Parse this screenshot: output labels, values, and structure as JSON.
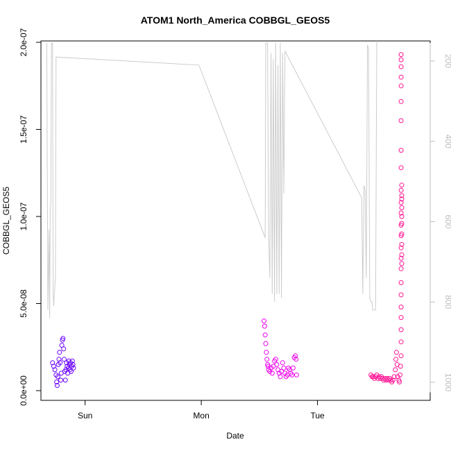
{
  "chart_data": {
    "type": "scatter",
    "title": "ATOM1 North_America COBBGL_GEOS5",
    "xlabel": "Date",
    "ylabel": "COBBGL_GEOS5",
    "y_tick_labels": [
      "0.0e+00",
      "5.0e-08",
      "1.0e-07",
      "1.5e-07",
      "2.0e-07"
    ],
    "y_ticks": [
      0,
      5e-08,
      1e-07,
      1.5e-07,
      2e-07
    ],
    "ylim": [
      0,
      2e-07
    ],
    "x_tick_labels": [
      "Sun",
      "Mon",
      "Tue"
    ],
    "x_ticks": [
      1,
      2,
      3
    ],
    "xlim": [
      0.62,
      3.97
    ],
    "right_axis": {
      "tick_labels": [
        "200",
        "400",
        "600",
        "800",
        "1000"
      ],
      "ticks": [
        200,
        400,
        600,
        800,
        1000
      ],
      "range_top": 155,
      "range_bottom": 1025,
      "color": "#bdbdbd"
    },
    "grid": false,
    "series": [
      {
        "color": "#6a00ff",
        "segments": [
          {
            "x_start": 0.72,
            "x_end": 0.99,
            "points": [
              [
                0.72,
                1.6e-08
              ],
              [
                0.73,
                1.4e-08
              ],
              [
                0.74,
                1.2e-08
              ],
              [
                0.75,
                9e-09
              ],
              [
                0.755,
                5e-09
              ],
              [
                0.76,
                3e-09
              ],
              [
                0.765,
                8e-09
              ],
              [
                0.77,
                1.5e-08
              ],
              [
                0.775,
                1.8e-08
              ],
              [
                0.78,
                2.2e-08
              ],
              [
                0.785,
                1.6e-08
              ],
              [
                0.79,
                6e-09
              ],
              [
                0.795,
                1e-08
              ],
              [
                0.8,
                2.6e-08
              ],
              [
                0.805,
                2.9e-08
              ],
              [
                0.81,
                3e-08
              ],
              [
                0.815,
                2.4e-08
              ],
              [
                0.82,
                1.8e-08
              ],
              [
                0.825,
                1.1e-08
              ],
              [
                0.83,
                6e-09
              ],
              [
                0.835,
                1.2e-08
              ],
              [
                0.84,
                1.6e-08
              ],
              [
                0.845,
                1.4e-08
              ],
              [
                0.85,
                1e-08
              ],
              [
                0.855,
                1.3e-08
              ],
              [
                0.86,
                1.7e-08
              ],
              [
                0.865,
                1.5e-08
              ],
              [
                0.87,
                1.2e-08
              ],
              [
                0.875,
                1.6e-08
              ],
              [
                0.88,
                1.1e-08
              ],
              [
                0.885,
                1.4e-08
              ],
              [
                0.89,
                1.7e-08
              ],
              [
                0.895,
                1.5e-08
              ],
              [
                0.9,
                1.3e-08
              ]
            ]
          }
        ]
      },
      {
        "color": "#ee00ee",
        "segments": [
          {
            "x_start": 2.54,
            "x_end": 2.82,
            "points": [
              [
                2.54,
                4e-08
              ],
              [
                2.545,
                3.7e-08
              ],
              [
                2.55,
                3.2e-08
              ],
              [
                2.555,
                2.7e-08
              ],
              [
                2.56,
                2.2e-08
              ],
              [
                2.565,
                1.8e-08
              ],
              [
                2.57,
                1.5e-08
              ],
              [
                2.575,
                1.4e-08
              ],
              [
                2.58,
                1.2e-08
              ],
              [
                2.59,
                1.1e-08
              ],
              [
                2.6,
                1.3e-08
              ],
              [
                2.61,
                1e-08
              ],
              [
                2.62,
                1.4e-08
              ],
              [
                2.63,
                1.7e-08
              ],
              [
                2.64,
                1.8e-08
              ],
              [
                2.65,
                1.5e-08
              ],
              [
                2.66,
                1.2e-08
              ],
              [
                2.67,
                1e-08
              ],
              [
                2.68,
                8e-09
              ],
              [
                2.69,
                1.1e-08
              ],
              [
                2.7,
                1.6e-08
              ],
              [
                2.71,
                1.3e-08
              ],
              [
                2.72,
                1e-08
              ],
              [
                2.73,
                8e-09
              ],
              [
                2.74,
                9e-09
              ],
              [
                2.75,
                1.3e-08
              ],
              [
                2.76,
                1.2e-08
              ],
              [
                2.77,
                1e-08
              ],
              [
                2.78,
                9e-09
              ],
              [
                2.79,
                1.3e-08
              ],
              [
                2.8,
                1.9e-08
              ],
              [
                2.81,
                2e-08
              ],
              [
                2.815,
                1.8e-08
              ],
              [
                2.82,
                9e-09
              ]
            ]
          }
        ]
      },
      {
        "color": "#ff1493",
        "segments": [
          {
            "x_start": 3.46,
            "x_end": 3.84,
            "points": [
              [
                3.46,
                9e-09
              ],
              [
                3.47,
                8e-09
              ],
              [
                3.48,
                8e-09
              ],
              [
                3.49,
                7e-09
              ],
              [
                3.5,
                8e-09
              ],
              [
                3.51,
                9e-09
              ],
              [
                3.52,
                7e-09
              ],
              [
                3.53,
                8e-09
              ],
              [
                3.54,
                7e-09
              ],
              [
                3.55,
                8e-09
              ],
              [
                3.56,
                7e-09
              ],
              [
                3.57,
                6e-09
              ],
              [
                3.58,
                7e-09
              ],
              [
                3.59,
                6e-09
              ],
              [
                3.6,
                7e-09
              ],
              [
                3.61,
                6e-09
              ],
              [
                3.62,
                7e-09
              ],
              [
                3.63,
                6e-09
              ],
              [
                3.64,
                5e-09
              ],
              [
                3.65,
                6e-09
              ],
              [
                3.66,
                8e-09
              ],
              [
                3.67,
                1.2e-08
              ],
              [
                3.675,
                1.8e-08
              ],
              [
                3.68,
                2.2e-08
              ],
              [
                3.685,
                1.5e-08
              ],
              [
                3.69,
                8e-09
              ],
              [
                3.7,
                6e-09
              ],
              [
                3.705,
                5e-09
              ],
              [
                3.71,
                9e-09
              ],
              [
                3.715,
                1.4e-08
              ],
              [
                3.72,
                2e-08
              ],
              [
                3.72,
                2.8e-08
              ],
              [
                3.72,
                3.5e-08
              ],
              [
                3.72,
                4.2e-08
              ],
              [
                3.72,
                4.8e-08
              ],
              [
                3.72,
                5.5e-08
              ],
              [
                3.72,
                6.2e-08
              ],
              [
                3.72,
                7e-08
              ],
              [
                3.72,
                7.6e-08
              ],
              [
                3.72,
                8.2e-08
              ],
              [
                3.72,
                8.9e-08
              ],
              [
                3.72,
                9.5e-08
              ],
              [
                3.72,
                1.02e-07
              ],
              [
                3.72,
                1.08e-07
              ],
              [
                3.72,
                1.15e-07
              ],
              [
                3.72,
                1.28e-07
              ],
              [
                3.72,
                1.38e-07
              ],
              [
                3.72,
                1.55e-07
              ],
              [
                3.72,
                1.66e-07
              ],
              [
                3.72,
                1.75e-07
              ],
              [
                3.72,
                1.8e-07
              ],
              [
                3.72,
                1.86e-07
              ],
              [
                3.72,
                1.9e-07
              ],
              [
                3.72,
                1.93e-07
              ],
              [
                3.725,
                1.1e-07
              ],
              [
                3.725,
                1e-07
              ],
              [
                3.725,
                9e-08
              ],
              [
                3.725,
                8.4e-08
              ],
              [
                3.725,
                7.8e-08
              ],
              [
                3.725,
                7.3e-08
              ],
              [
                3.725,
                9.6e-08
              ],
              [
                3.725,
                1.05e-07
              ],
              [
                3.725,
                1.12e-07
              ],
              [
                3.725,
                1.18e-07
              ]
            ]
          }
        ]
      }
    ],
    "pressure_line": {
      "color": "#cccccc",
      "points": [
        [
          0.67,
          155
        ],
        [
          0.68,
          820
        ],
        [
          0.69,
          620
        ],
        [
          0.695,
          840
        ],
        [
          0.7,
          565
        ],
        [
          0.705,
          560
        ],
        [
          0.71,
          155
        ],
        [
          0.72,
          155
        ],
        [
          0.725,
          780
        ],
        [
          0.73,
          810
        ],
        [
          0.74,
          760
        ],
        [
          0.745,
          740
        ],
        [
          0.75,
          190
        ],
        [
          1.98,
          210
        ],
        [
          2.55,
          640
        ],
        [
          2.555,
          155
        ],
        [
          2.57,
          155
        ],
        [
          2.58,
          640
        ],
        [
          2.59,
          740
        ],
        [
          2.6,
          180
        ],
        [
          2.61,
          780
        ],
        [
          2.62,
          195
        ],
        [
          2.63,
          800
        ],
        [
          2.64,
          155
        ],
        [
          2.65,
          780
        ],
        [
          2.66,
          210
        ],
        [
          2.67,
          780
        ],
        [
          2.68,
          155
        ],
        [
          2.69,
          790
        ],
        [
          2.7,
          180
        ],
        [
          2.71,
          530
        ],
        [
          2.72,
          175
        ],
        [
          3.38,
          540
        ],
        [
          3.39,
          780
        ],
        [
          3.4,
          510
        ],
        [
          3.41,
          520
        ],
        [
          3.42,
          740
        ],
        [
          3.43,
          160
        ],
        [
          3.44,
          170
        ],
        [
          3.45,
          790
        ],
        [
          3.46,
          800
        ],
        [
          3.47,
          800
        ],
        [
          3.475,
          820
        ],
        [
          3.48,
          820
        ],
        [
          3.49,
          820
        ],
        [
          3.495,
          820
        ],
        [
          3.5,
          820
        ],
        [
          3.51,
          150
        ]
      ]
    }
  }
}
